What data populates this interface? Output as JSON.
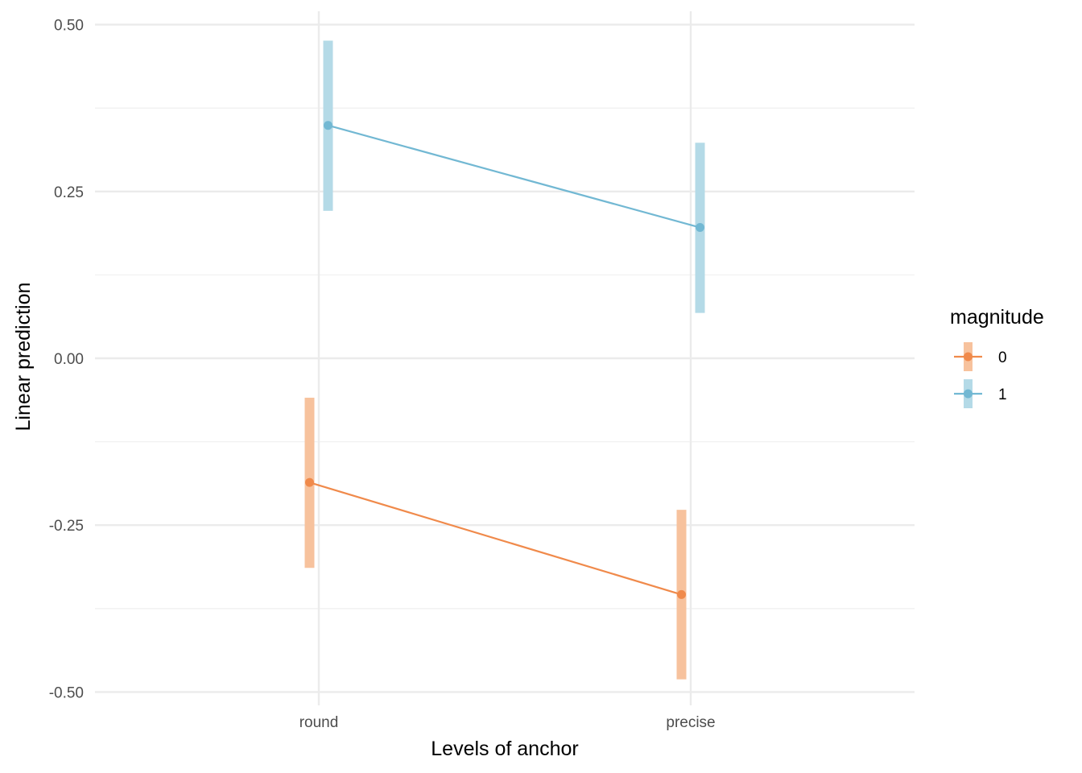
{
  "chart_data": {
    "type": "line",
    "xlabel": "Levels of anchor",
    "ylabel": "Linear prediction",
    "categories": [
      "round",
      "precise"
    ],
    "ylim": [
      -0.52,
      0.52
    ],
    "yticks": [
      0.5,
      0.25,
      0.0,
      -0.25,
      -0.5
    ],
    "ytick_labels": [
      "0.50",
      "0.25",
      "0.00",
      "-0.25",
      "-0.50"
    ],
    "grid": true,
    "legend": {
      "title": "magnitude",
      "position": "right"
    },
    "series": [
      {
        "name": "0",
        "color": "#f08a4b",
        "band_color": "#f7c29d",
        "values": [
          -0.186,
          -0.354
        ],
        "lower": [
          -0.314,
          -0.481
        ],
        "upper": [
          -0.059,
          -0.227
        ]
      },
      {
        "name": "1",
        "color": "#72b8d3",
        "band_color": "#b4dae7",
        "values": [
          0.349,
          0.196
        ],
        "lower": [
          0.221,
          0.068
        ],
        "upper": [
          0.476,
          0.323
        ]
      }
    ]
  }
}
